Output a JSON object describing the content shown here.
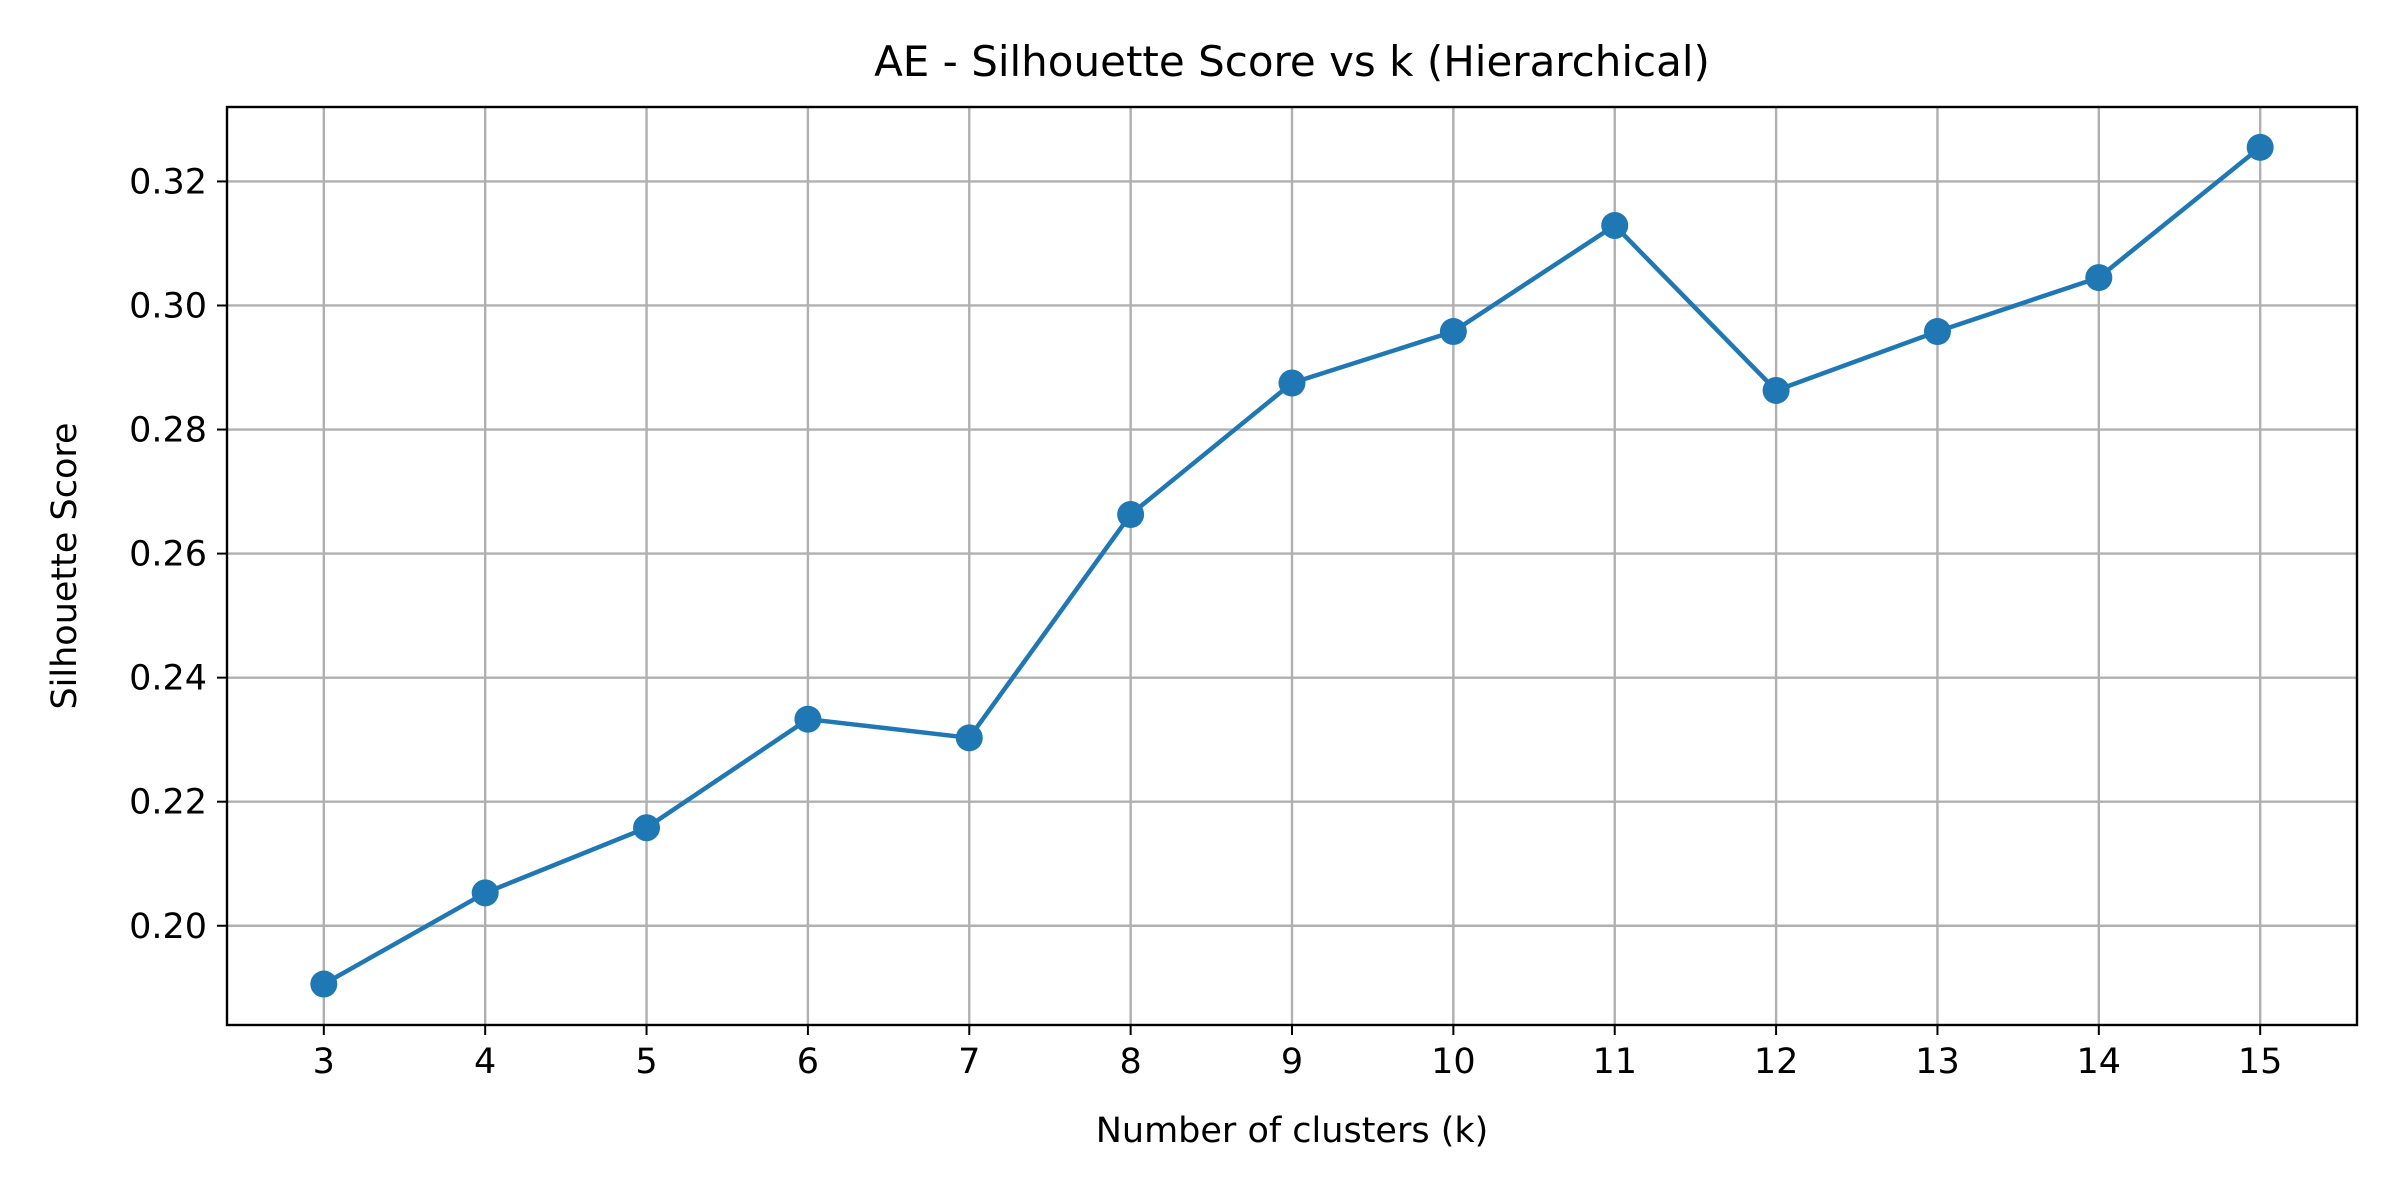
{
  "chart_data": {
    "type": "line",
    "title": "AE - Silhouette Score vs k (Hierarchical)",
    "xlabel": "Number of clusters (k)",
    "ylabel": "Silhouette Score",
    "x": [
      3,
      4,
      5,
      6,
      7,
      8,
      9,
      10,
      11,
      12,
      13,
      14,
      15
    ],
    "series": [
      {
        "values": [
          0.1906,
          0.2053,
          0.2158,
          0.2333,
          0.2303,
          0.2663,
          0.2875,
          0.2958,
          0.3129,
          0.2863,
          0.2958,
          0.3045,
          0.3255
        ],
        "color": "#1f77b4",
        "marker": "circle"
      }
    ],
    "xticks": [
      3,
      4,
      5,
      6,
      7,
      8,
      9,
      10,
      11,
      12,
      13,
      14,
      15
    ],
    "yticks": [
      "0.20",
      "0.22",
      "0.24",
      "0.26",
      "0.28",
      "0.30",
      "0.32"
    ],
    "xlim": [
      2.4,
      15.6
    ],
    "ylim": [
      0.184,
      0.332
    ],
    "grid": true,
    "legend": "none"
  }
}
